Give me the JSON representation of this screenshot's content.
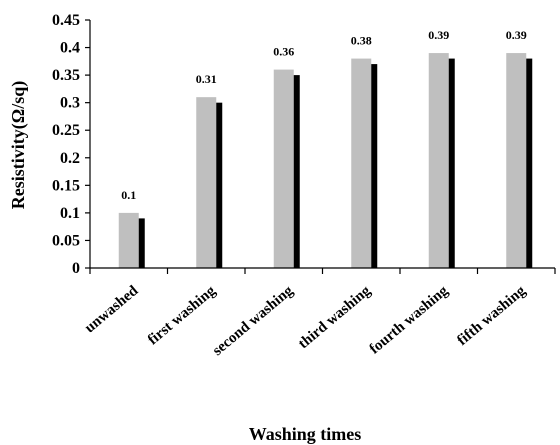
{
  "chart_data": {
    "type": "bar",
    "xlabel": "Washing times",
    "ylabel": "Resistivity(Ω/sq)",
    "ylim": [
      0,
      0.45
    ],
    "yticks": [
      "0",
      "0.05",
      "0.1",
      "0.15",
      "0.2",
      "0.25",
      "0.3",
      "0.35",
      "0.4",
      "0.45"
    ],
    "grid": false,
    "categories": [
      "unwashed",
      "first washing",
      "second washing",
      "third washing",
      "fourth washing",
      "fifth washing"
    ],
    "series": [
      {
        "color": "#bfbfbf",
        "values": [
          0.1,
          0.31,
          0.36,
          0.38,
          0.39,
          0.39
        ]
      },
      {
        "color": "#000000",
        "values": [
          0.09,
          0.3,
          0.35,
          0.37,
          0.38,
          0.38
        ]
      }
    ],
    "data_labels": [
      "0.1",
      "0.31",
      "0.36",
      "0.38",
      "0.39",
      "0.39"
    ]
  }
}
